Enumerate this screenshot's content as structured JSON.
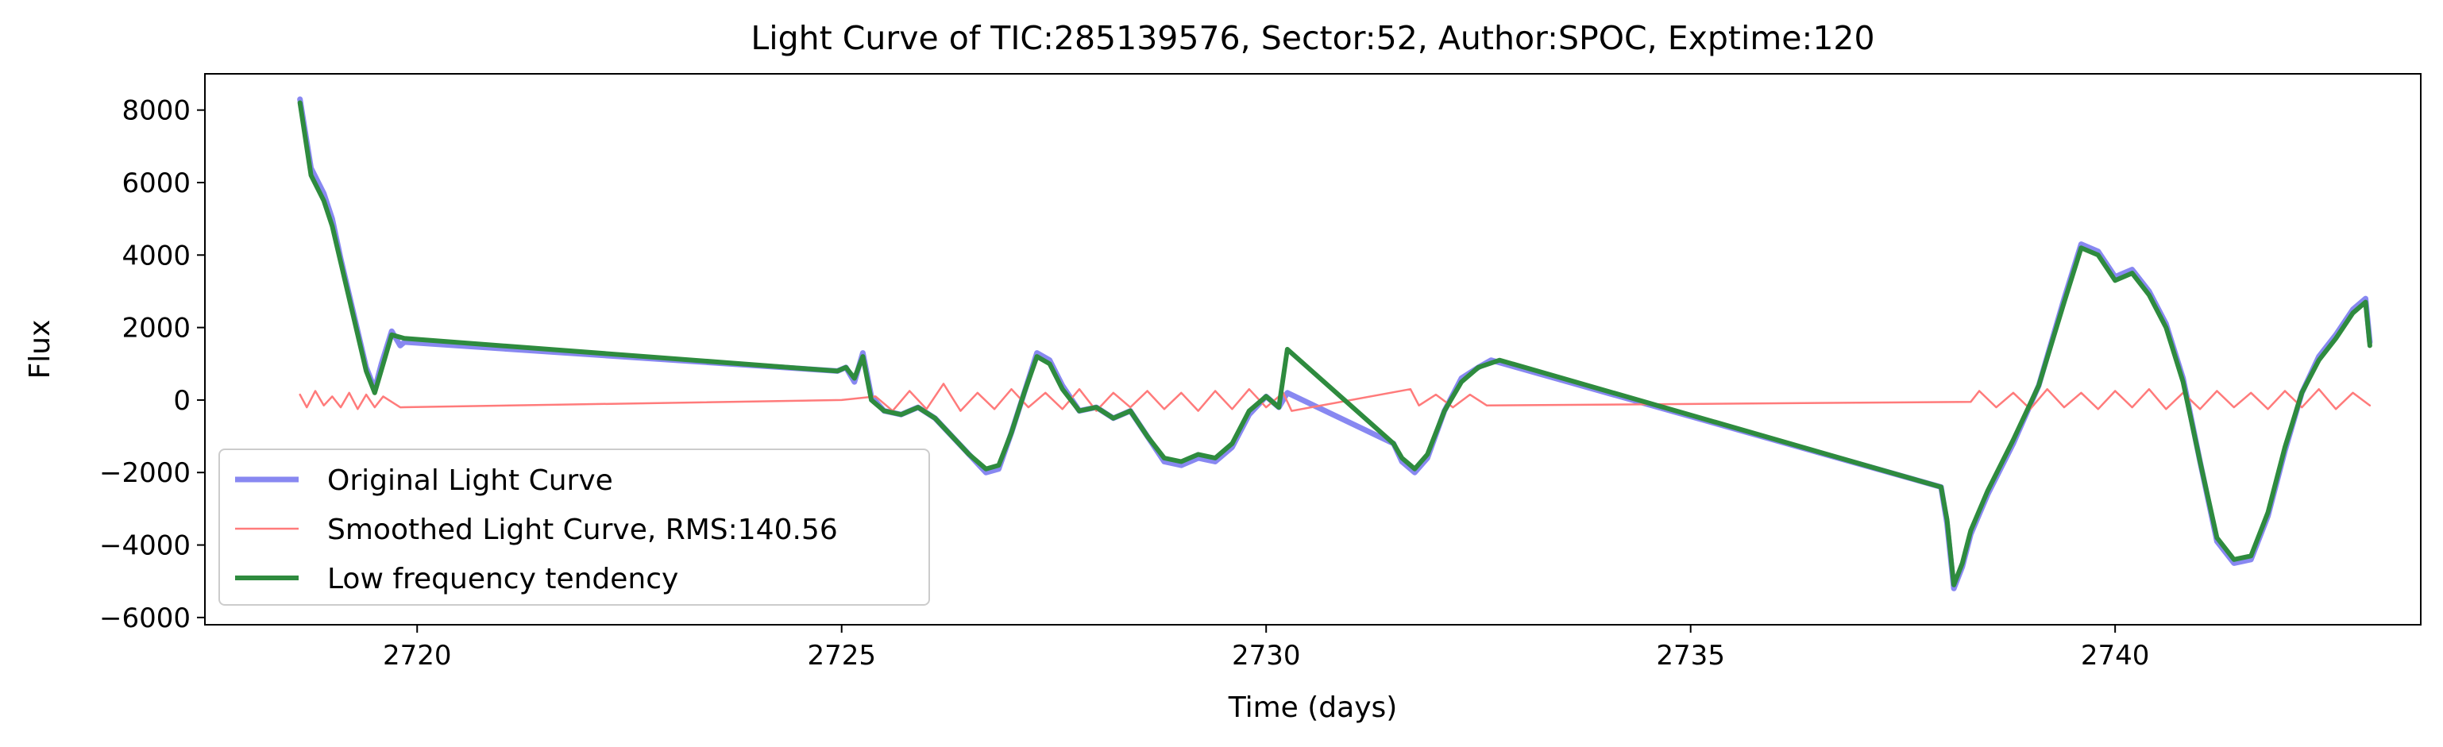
{
  "chart_data": {
    "type": "line",
    "title": "Light Curve of TIC:285139576, Sector:52, Author:SPOC, Exptime:120",
    "xlabel": "Time (days)",
    "ylabel": "Flux",
    "xlim": [
      2717.5,
      2743.6
    ],
    "ylim": [
      -6200,
      9000
    ],
    "xticks": [
      2720,
      2725,
      2730,
      2735,
      2740
    ],
    "yticks": [
      -6000,
      -4000,
      -2000,
      0,
      2000,
      4000,
      6000,
      8000
    ],
    "grid": false,
    "legend_position": "lower-left",
    "series": [
      {
        "name": "Original Light Curve",
        "color": "#7b7bf0",
        "points": [
          [
            2718.62,
            8300
          ],
          [
            2718.75,
            6400
          ],
          [
            2718.9,
            5700
          ],
          [
            2719.0,
            5000
          ],
          [
            2719.1,
            3900
          ],
          [
            2719.2,
            2900
          ],
          [
            2719.3,
            1900
          ],
          [
            2719.4,
            900
          ],
          [
            2719.5,
            300
          ],
          [
            2719.58,
            1000
          ],
          [
            2719.7,
            1900
          ],
          [
            2719.8,
            1500
          ],
          [
            2719.85,
            1600
          ],
          [
            2724.95,
            800
          ],
          [
            2725.05,
            900
          ],
          [
            2725.15,
            500
          ],
          [
            2725.25,
            1300
          ],
          [
            2725.35,
            100
          ],
          [
            2725.5,
            -300
          ],
          [
            2725.7,
            -400
          ],
          [
            2725.9,
            -200
          ],
          [
            2726.1,
            -500
          ],
          [
            2726.3,
            -1000
          ],
          [
            2726.5,
            -1500
          ],
          [
            2726.7,
            -2000
          ],
          [
            2726.85,
            -1900
          ],
          [
            2727.0,
            -900
          ],
          [
            2727.15,
            200
          ],
          [
            2727.3,
            1300
          ],
          [
            2727.45,
            1100
          ],
          [
            2727.6,
            400
          ],
          [
            2727.8,
            -300
          ],
          [
            2728.0,
            -200
          ],
          [
            2728.2,
            -500
          ],
          [
            2728.4,
            -300
          ],
          [
            2728.6,
            -1000
          ],
          [
            2728.8,
            -1700
          ],
          [
            2729.0,
            -1800
          ],
          [
            2729.2,
            -1600
          ],
          [
            2729.4,
            -1700
          ],
          [
            2729.6,
            -1300
          ],
          [
            2729.8,
            -400
          ],
          [
            2730.0,
            100
          ],
          [
            2730.15,
            -200
          ],
          [
            2730.25,
            200
          ],
          [
            2731.5,
            -1200
          ],
          [
            2731.6,
            -1700
          ],
          [
            2731.75,
            -2000
          ],
          [
            2731.9,
            -1600
          ],
          [
            2732.1,
            -300
          ],
          [
            2732.3,
            600
          ],
          [
            2732.5,
            900
          ],
          [
            2732.65,
            1100
          ],
          [
            2737.95,
            -2400
          ],
          [
            2738.02,
            -3400
          ],
          [
            2738.1,
            -5200
          ],
          [
            2738.2,
            -4600
          ],
          [
            2738.3,
            -3700
          ],
          [
            2738.5,
            -2600
          ],
          [
            2738.8,
            -1200
          ],
          [
            2739.1,
            400
          ],
          [
            2739.4,
            2800
          ],
          [
            2739.6,
            4300
          ],
          [
            2739.8,
            4100
          ],
          [
            2740.0,
            3400
          ],
          [
            2740.2,
            3600
          ],
          [
            2740.4,
            3000
          ],
          [
            2740.6,
            2100
          ],
          [
            2740.8,
            600
          ],
          [
            2741.0,
            -1700
          ],
          [
            2741.2,
            -3900
          ],
          [
            2741.4,
            -4500
          ],
          [
            2741.6,
            -4400
          ],
          [
            2741.8,
            -3200
          ],
          [
            2742.0,
            -1400
          ],
          [
            2742.2,
            200
          ],
          [
            2742.4,
            1200
          ],
          [
            2742.6,
            1800
          ],
          [
            2742.8,
            2500
          ],
          [
            2742.95,
            2800
          ],
          [
            2743.0,
            1600
          ]
        ]
      },
      {
        "name": "Smoothed Light Curve, RMS:140.56",
        "color": "#ff7b7b",
        "points": [
          [
            2718.62,
            150
          ],
          [
            2718.7,
            -200
          ],
          [
            2718.8,
            250
          ],
          [
            2718.9,
            -150
          ],
          [
            2719.0,
            100
          ],
          [
            2719.1,
            -200
          ],
          [
            2719.2,
            200
          ],
          [
            2719.3,
            -250
          ],
          [
            2719.4,
            150
          ],
          [
            2719.5,
            -200
          ],
          [
            2719.6,
            100
          ],
          [
            2719.8,
            -200
          ],
          [
            2725.0,
            0
          ],
          [
            2725.4,
            100
          ],
          [
            2725.6,
            -300
          ],
          [
            2725.8,
            250
          ],
          [
            2726.0,
            -250
          ],
          [
            2726.2,
            450
          ],
          [
            2726.4,
            -300
          ],
          [
            2726.6,
            200
          ],
          [
            2726.8,
            -250
          ],
          [
            2727.0,
            300
          ],
          [
            2727.2,
            -200
          ],
          [
            2727.4,
            200
          ],
          [
            2727.6,
            -250
          ],
          [
            2727.8,
            300
          ],
          [
            2728.0,
            -300
          ],
          [
            2728.2,
            200
          ],
          [
            2728.4,
            -200
          ],
          [
            2728.6,
            250
          ],
          [
            2728.8,
            -250
          ],
          [
            2729.0,
            200
          ],
          [
            2729.2,
            -300
          ],
          [
            2729.4,
            250
          ],
          [
            2729.6,
            -250
          ],
          [
            2729.8,
            300
          ],
          [
            2730.0,
            -200
          ],
          [
            2730.2,
            200
          ],
          [
            2730.3,
            -300
          ],
          [
            2731.7,
            300
          ],
          [
            2731.8,
            -150
          ],
          [
            2732.0,
            150
          ],
          [
            2732.2,
            -200
          ],
          [
            2732.4,
            150
          ],
          [
            2732.6,
            -150
          ],
          [
            2738.3,
            -50
          ],
          [
            2738.4,
            250
          ],
          [
            2738.6,
            -200
          ],
          [
            2738.8,
            200
          ],
          [
            2739.0,
            -250
          ],
          [
            2739.2,
            300
          ],
          [
            2739.4,
            -200
          ],
          [
            2739.6,
            200
          ],
          [
            2739.8,
            -250
          ],
          [
            2740.0,
            250
          ],
          [
            2740.2,
            -200
          ],
          [
            2740.4,
            300
          ],
          [
            2740.6,
            -250
          ],
          [
            2740.8,
            200
          ],
          [
            2741.0,
            -250
          ],
          [
            2741.2,
            250
          ],
          [
            2741.4,
            -200
          ],
          [
            2741.6,
            200
          ],
          [
            2741.8,
            -250
          ],
          [
            2742.0,
            250
          ],
          [
            2742.2,
            -200
          ],
          [
            2742.4,
            300
          ],
          [
            2742.6,
            -250
          ],
          [
            2742.8,
            200
          ],
          [
            2743.0,
            -150
          ]
        ]
      },
      {
        "name": "Low frequency tendency",
        "color": "#2e8b3e",
        "points": [
          [
            2718.62,
            8200
          ],
          [
            2718.75,
            6200
          ],
          [
            2718.9,
            5500
          ],
          [
            2719.0,
            4800
          ],
          [
            2719.1,
            3800
          ],
          [
            2719.2,
            2800
          ],
          [
            2719.3,
            1800
          ],
          [
            2719.4,
            800
          ],
          [
            2719.5,
            200
          ],
          [
            2719.6,
            1000
          ],
          [
            2719.7,
            1800
          ],
          [
            2719.85,
            1700
          ],
          [
            2724.95,
            800
          ],
          [
            2725.05,
            900
          ],
          [
            2725.15,
            600
          ],
          [
            2725.25,
            1200
          ],
          [
            2725.35,
            0
          ],
          [
            2725.5,
            -300
          ],
          [
            2725.7,
            -400
          ],
          [
            2725.9,
            -200
          ],
          [
            2726.1,
            -500
          ],
          [
            2726.3,
            -1000
          ],
          [
            2726.5,
            -1500
          ],
          [
            2726.7,
            -1900
          ],
          [
            2726.85,
            -1800
          ],
          [
            2727.0,
            -900
          ],
          [
            2727.15,
            200
          ],
          [
            2727.3,
            1200
          ],
          [
            2727.45,
            1000
          ],
          [
            2727.6,
            300
          ],
          [
            2727.8,
            -300
          ],
          [
            2728.0,
            -200
          ],
          [
            2728.2,
            -500
          ],
          [
            2728.4,
            -300
          ],
          [
            2728.6,
            -1000
          ],
          [
            2728.8,
            -1600
          ],
          [
            2729.0,
            -1700
          ],
          [
            2729.2,
            -1500
          ],
          [
            2729.4,
            -1600
          ],
          [
            2729.6,
            -1200
          ],
          [
            2729.8,
            -300
          ],
          [
            2730.0,
            100
          ],
          [
            2730.15,
            -200
          ],
          [
            2730.25,
            1400
          ],
          [
            2731.5,
            -1200
          ],
          [
            2731.6,
            -1600
          ],
          [
            2731.75,
            -1900
          ],
          [
            2731.9,
            -1500
          ],
          [
            2732.1,
            -300
          ],
          [
            2732.3,
            500
          ],
          [
            2732.5,
            900
          ],
          [
            2732.75,
            1100
          ],
          [
            2737.95,
            -2400
          ],
          [
            2738.02,
            -3300
          ],
          [
            2738.1,
            -5100
          ],
          [
            2738.2,
            -4500
          ],
          [
            2738.3,
            -3600
          ],
          [
            2738.5,
            -2500
          ],
          [
            2738.8,
            -1100
          ],
          [
            2739.1,
            400
          ],
          [
            2739.4,
            2700
          ],
          [
            2739.6,
            4200
          ],
          [
            2739.8,
            4000
          ],
          [
            2740.0,
            3300
          ],
          [
            2740.2,
            3500
          ],
          [
            2740.4,
            2900
          ],
          [
            2740.6,
            2000
          ],
          [
            2740.8,
            500
          ],
          [
            2741.0,
            -1700
          ],
          [
            2741.2,
            -3800
          ],
          [
            2741.4,
            -4400
          ],
          [
            2741.6,
            -4300
          ],
          [
            2741.8,
            -3100
          ],
          [
            2742.0,
            -1300
          ],
          [
            2742.2,
            200
          ],
          [
            2742.4,
            1100
          ],
          [
            2742.6,
            1700
          ],
          [
            2742.8,
            2400
          ],
          [
            2742.95,
            2700
          ],
          [
            2743.0,
            1500
          ]
        ]
      }
    ]
  }
}
